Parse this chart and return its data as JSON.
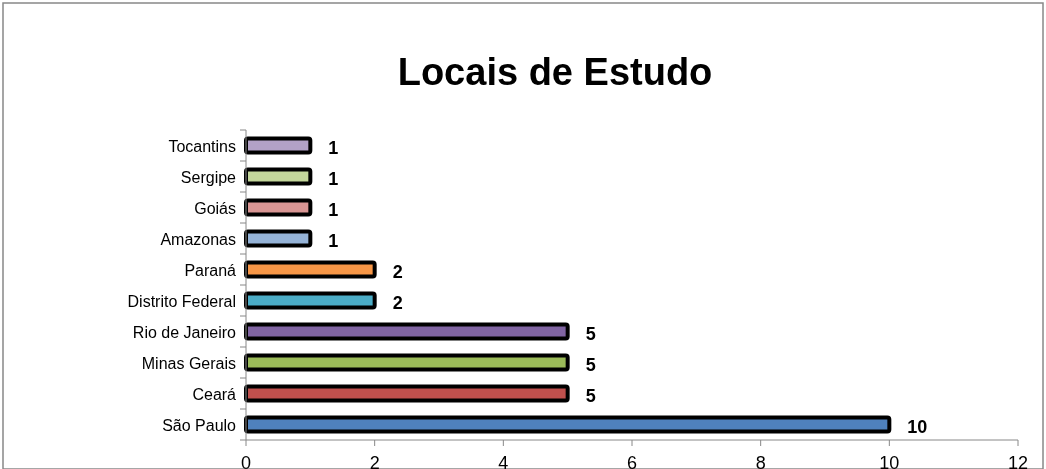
{
  "chart_data": {
    "type": "bar",
    "orientation": "horizontal",
    "title": "Locais de Estudo",
    "categories": [
      "Tocantins",
      "Sergipe",
      "Goiás",
      "Amazonas",
      "Paraná",
      "Distrito Federal",
      "Rio de Janeiro",
      "Minas Gerais",
      "Ceará",
      "São Paulo"
    ],
    "values": [
      1,
      1,
      1,
      1,
      2,
      2,
      5,
      5,
      5,
      10
    ],
    "colors": [
      "#b3a2c7",
      "#c3d69b",
      "#d99694",
      "#95b3d7",
      "#f79646",
      "#4bacc6",
      "#8064a2",
      "#9bbb59",
      "#c0504d",
      "#4f81bd"
    ],
    "xlim": [
      0,
      12
    ],
    "xticks": [
      0,
      2,
      4,
      6,
      8,
      10,
      12
    ],
    "grid": false,
    "data_labels": true
  }
}
